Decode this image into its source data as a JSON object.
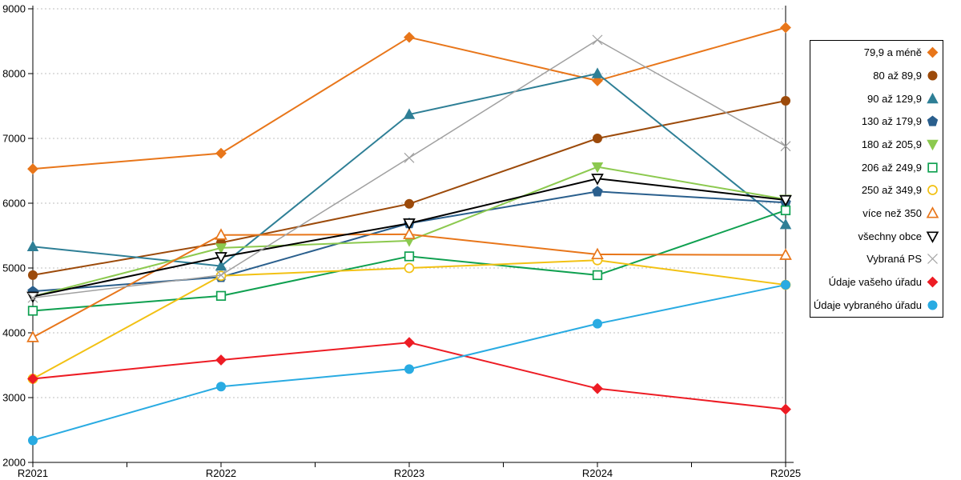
{
  "page": {
    "background": "#ffffff",
    "grid_color": "#bfbfbf",
    "axis_color": "#000000"
  },
  "chart_data": {
    "type": "line",
    "title": "",
    "xlabel": "",
    "ylabel": "",
    "x_categories": [
      "R2021",
      "R2022",
      "R2023",
      "R2024",
      "R2025"
    ],
    "y_axis": {
      "min": 2000,
      "max": 9000,
      "tick_step": 1000,
      "tick_labels": [
        "2000",
        "3000",
        "4000",
        "5000",
        "6000",
        "7000",
        "8000",
        "9000"
      ]
    },
    "grid": "horizontal dashed lines at each 1000",
    "legend_position": "right",
    "series": [
      {
        "name": "79,9 a méně",
        "color": "#E8761A",
        "marker": "diamond",
        "marker_style": "filled",
        "values": [
          6530,
          6770,
          8560,
          7890,
          8710
        ]
      },
      {
        "name": "80 až 89,9",
        "color": "#9C4A0A",
        "marker": "circle",
        "marker_style": "filled",
        "values": [
          4890,
          5390,
          5990,
          7000,
          7580
        ]
      },
      {
        "name": "90 až 129,9",
        "color": "#2E7F96",
        "marker": "triangle-up",
        "marker_style": "filled",
        "values": [
          5330,
          5030,
          7370,
          8000,
          5670
        ]
      },
      {
        "name": "130 až 179,9",
        "color": "#2A5F8D",
        "marker": "pentagon",
        "marker_style": "filled",
        "values": [
          4640,
          4860,
          5690,
          6180,
          6010
        ]
      },
      {
        "name": "180 až 205,9",
        "color": "#8CC94F",
        "marker": "triangle-down",
        "marker_style": "filled",
        "values": [
          4560,
          5310,
          5420,
          6560,
          6060
        ]
      },
      {
        "name": "206 až 249,9",
        "color": "#0FA050",
        "marker": "square",
        "marker_style": "open",
        "values": [
          4340,
          4570,
          5180,
          4890,
          5890
        ]
      },
      {
        "name": "250 až 349,9",
        "color": "#F2C113",
        "marker": "circle",
        "marker_style": "open",
        "values": [
          3290,
          4880,
          5000,
          5120,
          4740
        ]
      },
      {
        "name": "více než 350",
        "color": "#E8761A",
        "marker": "triangle-up",
        "marker_style": "open",
        "values": [
          3930,
          5510,
          5520,
          5210,
          5200
        ]
      },
      {
        "name": "všechny obce",
        "color": "#000000",
        "marker": "triangle-down",
        "marker_style": "open",
        "values": [
          4560,
          5170,
          5690,
          6380,
          6050
        ]
      },
      {
        "name": "Vybraná PS",
        "color": "#A0A0A0",
        "marker": "x",
        "marker_style": "open",
        "values": [
          4540,
          4890,
          6700,
          8520,
          6880
        ]
      },
      {
        "name": "Údaje vašeho úřadu",
        "color": "#ED1C24",
        "marker": "diamond",
        "marker_style": "filled",
        "values": [
          3290,
          3580,
          3850,
          3140,
          2820
        ]
      },
      {
        "name": "Údaje vybraného úřadu",
        "color": "#29ABE2",
        "marker": "circle",
        "marker_style": "filled",
        "values": [
          2340,
          3170,
          3440,
          4140,
          4740
        ]
      }
    ]
  }
}
